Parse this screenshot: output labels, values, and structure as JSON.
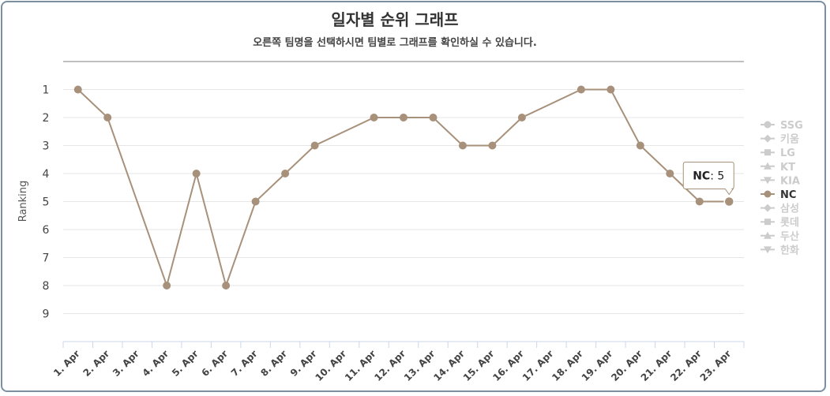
{
  "header": {
    "title": "일자별 순위 그래프",
    "subtitle": "오른쪽 팀명을 선택하시면 팀별로 그래프를 확인하실 수 있습니다."
  },
  "chart_data": {
    "type": "line",
    "ylabel": "Ranking",
    "y_reversed": true,
    "ylim": [
      0,
      10
    ],
    "y_ticks": [
      1,
      2,
      3,
      4,
      5,
      6,
      7,
      8,
      9
    ],
    "categories": [
      "1. Apr",
      "2. Apr",
      "3. Apr",
      "4. Apr",
      "5. Apr",
      "6. Apr",
      "7. Apr",
      "8. Apr",
      "9. Apr",
      "10. Apr",
      "11. Apr",
      "12. Apr",
      "13. Apr",
      "14. Apr",
      "15. Apr",
      "16. Apr",
      "17. Apr",
      "18. Apr",
      "19. Apr",
      "20. Apr",
      "21. Apr",
      "22. Apr",
      "23. Apr"
    ],
    "series": [
      {
        "name": "NC",
        "color": "#a8917a",
        "values": [
          1,
          2,
          null,
          8,
          4,
          8,
          5,
          4,
          3,
          null,
          2,
          2,
          2,
          3,
          3,
          2,
          null,
          1,
          1,
          3,
          4,
          5,
          5
        ]
      }
    ],
    "legend": {
      "position": "right",
      "items": [
        {
          "name": "SSG",
          "marker": "circle",
          "active": false
        },
        {
          "name": "키움",
          "marker": "diamond",
          "active": false
        },
        {
          "name": "LG",
          "marker": "square",
          "active": false
        },
        {
          "name": "KT",
          "marker": "triangle",
          "active": false
        },
        {
          "name": "KIA",
          "marker": "triangle-down",
          "active": false
        },
        {
          "name": "NC",
          "marker": "circle",
          "active": true
        },
        {
          "name": "삼성",
          "marker": "diamond",
          "active": false
        },
        {
          "name": "롯데",
          "marker": "square",
          "active": false
        },
        {
          "name": "두산",
          "marker": "triangle",
          "active": false
        },
        {
          "name": "한화",
          "marker": "triangle-down",
          "active": false
        }
      ]
    },
    "tooltip": {
      "series": "NC",
      "label": "NC",
      "separator": ": ",
      "value": 5,
      "index": 22
    },
    "grid": true,
    "colors": {
      "inactive": "#cccccc",
      "active_text": "#333333",
      "grid": "#e6e6e6",
      "axis": "#ccd6eb"
    }
  }
}
